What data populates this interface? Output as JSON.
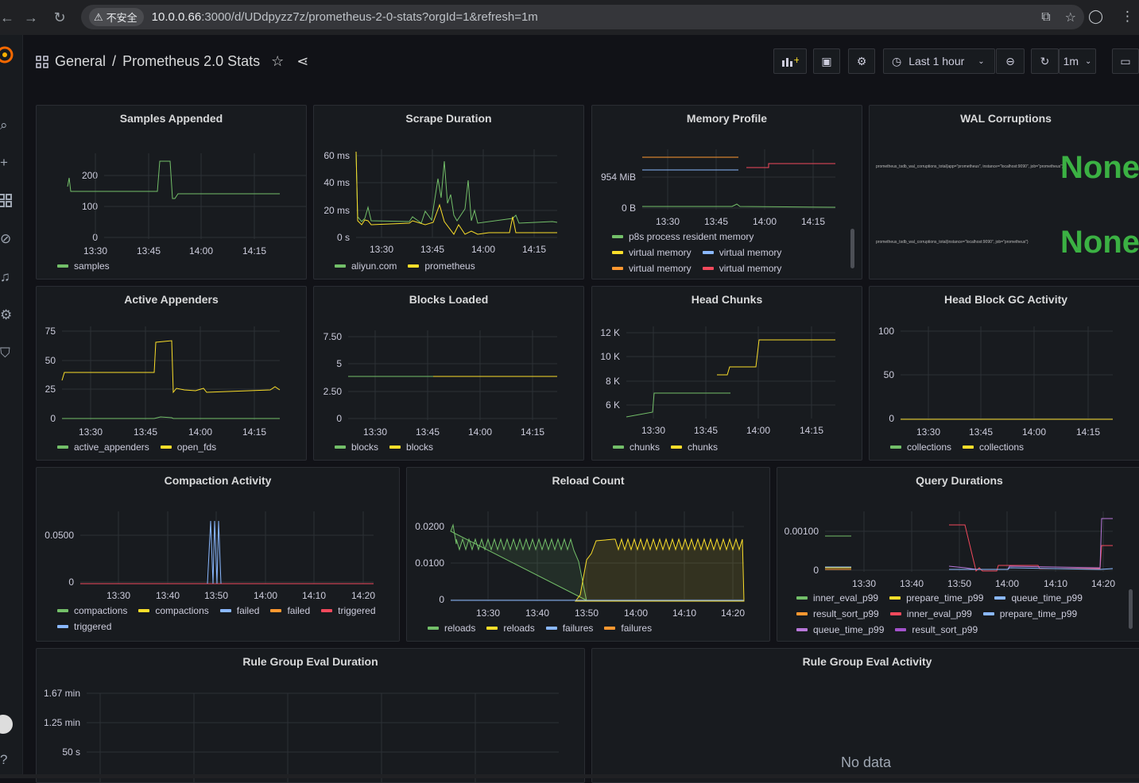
{
  "browser": {
    "insecure_label": "不安全",
    "url_host": "10.0.0.66",
    "url_path": ":3000/d/UDdpyzz7z/prometheus-2-0-stats?orgId=1&refresh=1m"
  },
  "header": {
    "folder": "General",
    "separator": "/",
    "title": "Prometheus 2.0 Stats",
    "time_range": "Last 1 hour",
    "refresh_interval": "1m"
  },
  "panels": {
    "samples_appended": {
      "title": "Samples Appended",
      "legend": [
        "samples"
      ],
      "y_ticks": [
        "200",
        "100",
        "0"
      ],
      "x_ticks": [
        "13:30",
        "13:45",
        "14:00",
        "14:15"
      ]
    },
    "scrape_duration": {
      "title": "Scrape Duration",
      "legend": [
        "aliyun.com",
        "prometheus"
      ],
      "y_ticks": [
        "60 ms",
        "40 ms",
        "20 ms",
        "0 s"
      ],
      "x_ticks": [
        "13:30",
        "13:45",
        "14:00",
        "14:15"
      ]
    },
    "memory_profile": {
      "title": "Memory Profile",
      "legend": [
        "p8s process resident memory",
        "virtual memory",
        "virtual memory",
        "virtual memory",
        "virtual memory"
      ],
      "y_ticks": [
        "954 MiB",
        "0 B"
      ],
      "x_ticks": [
        "13:30",
        "13:45",
        "14:00",
        "14:15"
      ]
    },
    "wal_corruptions": {
      "title": "WAL Corruptions",
      "value_1": "None",
      "value_2": "None",
      "label_1": "prometheus_tsdb_wal_corruptions_total{app=\"prometheus\", instance=\"localhost:9090\", job=\"prometheus\"}",
      "label_2": "prometheus_tsdb_wal_corruptions_total{instance=\"localhost:9090\", job=\"prometheus\"}"
    },
    "active_appenders": {
      "title": "Active Appenders",
      "legend": [
        "active_appenders",
        "open_fds"
      ],
      "y_ticks": [
        "75",
        "50",
        "25",
        "0"
      ],
      "x_ticks": [
        "13:30",
        "13:45",
        "14:00",
        "14:15"
      ]
    },
    "blocks_loaded": {
      "title": "Blocks Loaded",
      "legend": [
        "blocks",
        "blocks"
      ],
      "y_ticks": [
        "7.50",
        "5",
        "2.50",
        "0"
      ],
      "x_ticks": [
        "13:30",
        "13:45",
        "14:00",
        "14:15"
      ]
    },
    "head_chunks": {
      "title": "Head Chunks",
      "legend": [
        "chunks",
        "chunks"
      ],
      "y_ticks": [
        "12 K",
        "10 K",
        "8 K",
        "6 K"
      ],
      "x_ticks": [
        "13:30",
        "13:45",
        "14:00",
        "14:15"
      ]
    },
    "head_block_gc": {
      "title": "Head Block GC Activity",
      "legend": [
        "collections",
        "collections"
      ],
      "y_ticks": [
        "100",
        "50",
        "0"
      ],
      "x_ticks": [
        "13:30",
        "13:45",
        "14:00",
        "14:15"
      ]
    },
    "compaction_activity": {
      "title": "Compaction Activity",
      "legend": [
        "compactions",
        "compactions",
        "failed",
        "failed",
        "triggered",
        "triggered"
      ],
      "y_ticks": [
        "0.0500",
        "0"
      ],
      "x_ticks": [
        "13:30",
        "13:40",
        "13:50",
        "14:00",
        "14:10",
        "14:20"
      ]
    },
    "reload_count": {
      "title": "Reload Count",
      "legend": [
        "reloads",
        "reloads",
        "failures",
        "failures"
      ],
      "y_ticks": [
        "0.0200",
        "0.0100",
        "0"
      ],
      "x_ticks": [
        "13:30",
        "13:40",
        "13:50",
        "14:00",
        "14:10",
        "14:20"
      ]
    },
    "query_durations": {
      "title": "Query Durations",
      "legend": [
        "inner_eval_p99",
        "prepare_time_p99",
        "queue_time_p99",
        "result_sort_p99",
        "inner_eval_p99",
        "prepare_time_p99",
        "queue_time_p99",
        "result_sort_p99"
      ],
      "y_ticks": [
        "0.00100",
        "0"
      ],
      "x_ticks": [
        "13:30",
        "13:40",
        "13:50",
        "14:00",
        "14:10",
        "14:20"
      ]
    },
    "rule_group_eval_duration": {
      "title": "Rule Group Eval Duration",
      "y_ticks": [
        "1.67 min",
        "1.25 min",
        "50 s"
      ]
    },
    "rule_group_eval_activity": {
      "title": "Rule Group Eval Activity",
      "no_data": "No data"
    }
  },
  "colors": {
    "green": "#73bf69",
    "yellow": "#fade2a",
    "blue": "#8ab8ff",
    "orange": "#ff9830",
    "red": "#f2495c",
    "purple": "#b877d9",
    "violet": "#a352cc",
    "stat_green": "#3bb143"
  }
}
